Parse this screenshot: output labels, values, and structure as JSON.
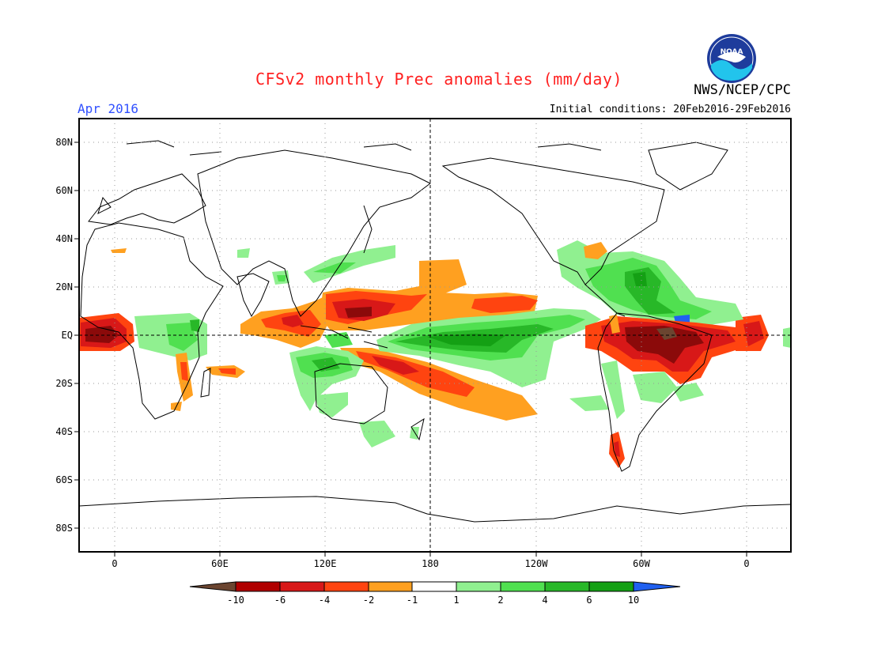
{
  "header": {
    "title": "CFSv2 monthly Prec anomalies (mm/day)",
    "valid_month": "Apr 2016",
    "initial_conditions": "Initial conditions: 20Feb2016-29Feb2016",
    "agency": "NWS/NCEP/CPC",
    "logo_text": "NOAA"
  },
  "axes": {
    "lat_labels": [
      "80N",
      "60N",
      "40N",
      "20N",
      "EQ",
      "20S",
      "40S",
      "60S",
      "80S"
    ],
    "lon_labels": [
      "0",
      "60E",
      "120E",
      "180",
      "120W",
      "60W",
      "0"
    ]
  },
  "colorbar": {
    "labels": [
      "-10",
      "-6",
      "-4",
      "-2",
      "-1",
      "1",
      "2",
      "4",
      "6",
      "10"
    ],
    "colors": [
      "#6b4530",
      "#b00000",
      "#d81818",
      "#ff4410",
      "#ffa020",
      "#ffffff",
      "#90f090",
      "#50e050",
      "#28b828",
      "#14a014",
      "#2060f0"
    ]
  },
  "anomaly_colors": {
    "deep_dry": "#8b0a0a",
    "dry": "#d81818",
    "moderate_dry": "#ff4410",
    "light_dry": "#ffa020",
    "light_wet": "#90f090",
    "wet": "#50e050",
    "very_wet": "#28b828",
    "extreme_wet": "#2060f0",
    "extreme_dry": "#6b4530"
  }
}
